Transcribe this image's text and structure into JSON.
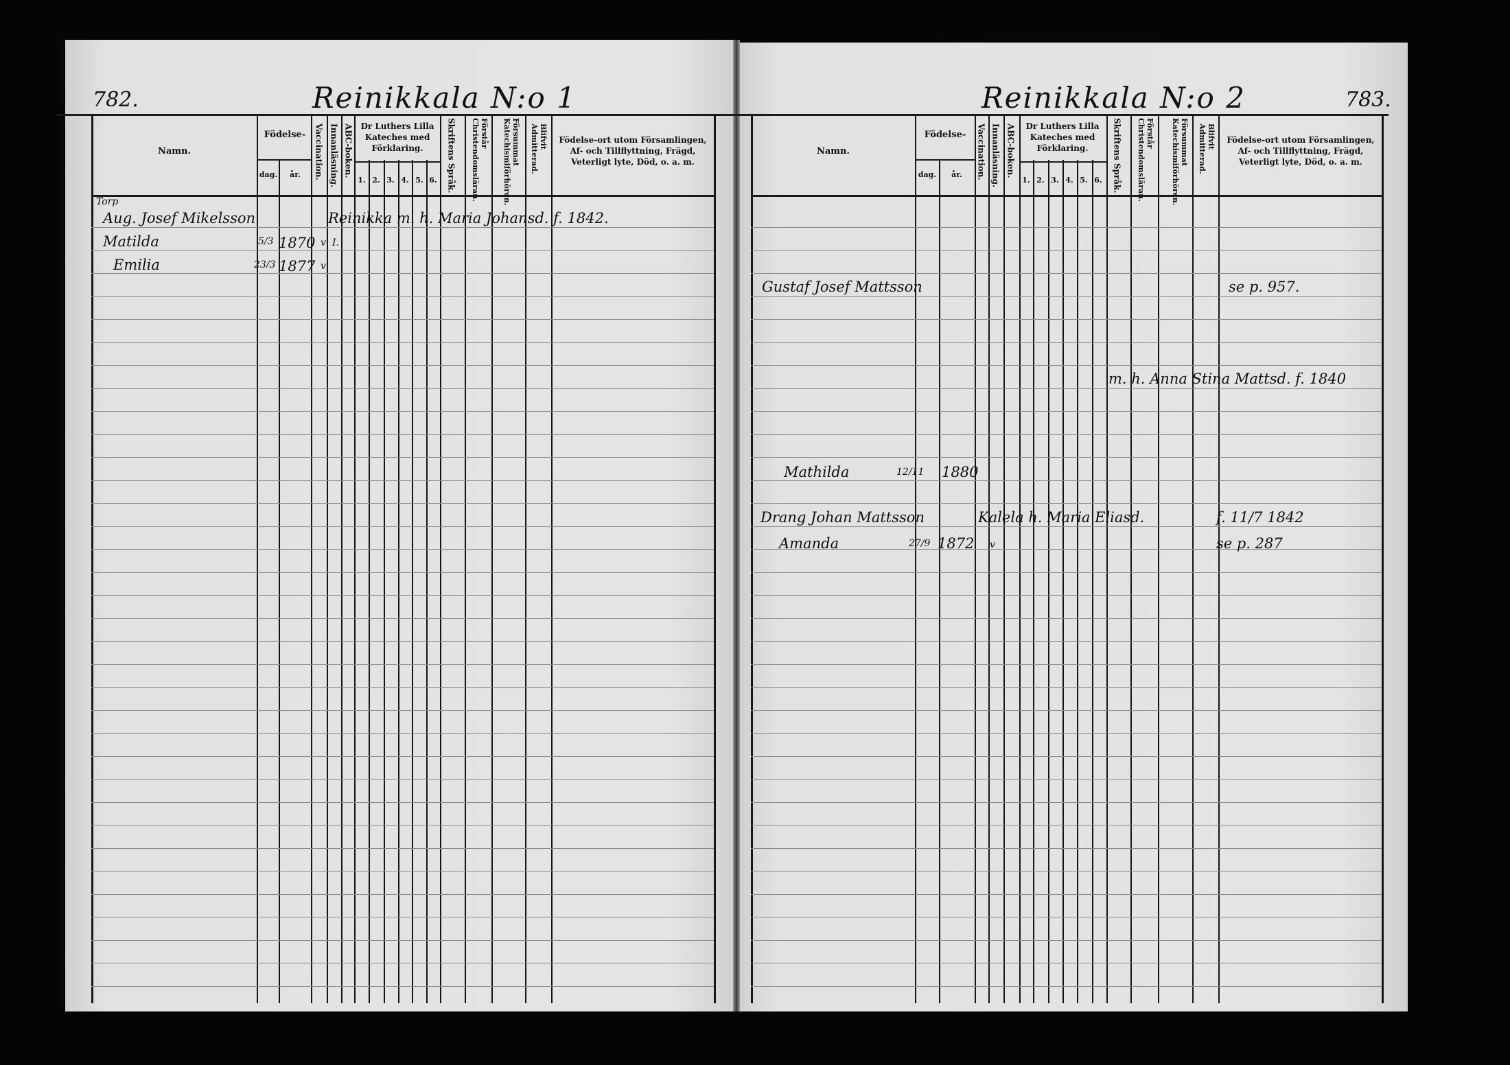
{
  "left_page": {
    "page_number": "782.",
    "title": "Reinikkala N:o 1",
    "headers": {
      "namn": "Namn.",
      "fodelse": "Födelse-",
      "dag": "dag.",
      "ar": "år.",
      "vaccination": "Vaccination.",
      "innanlasning": "Innanläsning.",
      "abc": "ABC-boken.",
      "katekes": "Dr Luthers Lilla Kateches med Förklaring.",
      "k1": "1.",
      "k2": "2.",
      "k3": "3.",
      "k4": "4.",
      "k5": "5.",
      "k6": "6.",
      "skriftens": "Skriftens Språk.",
      "forstar": "Förstår Christendomsläran.",
      "forsummat": "Försummat Katechismiförhören.",
      "blifvit": "Blifvit Admitterad.",
      "fodelseort": "Födelse-ort utom Församlingen, Af- och Tillflyttning, Frägd, Veterligt lyte, Död, o. a. m."
    },
    "entries": [
      {
        "note": "Torp",
        "name": "Aug. Josef Mikelsson",
        "text": "Reinikka m. h. Maria Johansd. f. 1842."
      },
      {
        "name": "Matilda",
        "dag": "5/3",
        "ar": "1870",
        "vacc": "v",
        "innan": "I."
      },
      {
        "name": "Emilia",
        "dag": "23/3",
        "ar": "1877",
        "vacc": "v"
      }
    ]
  },
  "right_page": {
    "page_number": "783.",
    "title": "Reinikkala N:o 2",
    "headers": {
      "namn": "Namn.",
      "fodelse": "Födelse-",
      "dag": "dag.",
      "ar": "år.",
      "vaccination": "Vaccination.",
      "innanlasning": "Innanläsning.",
      "abc": "ABC-boken.",
      "katekes": "Dr Luthers Lilla Kateches med Förklaring.",
      "k1": "1.",
      "k2": "2.",
      "k3": "3.",
      "k4": "4.",
      "k5": "5.",
      "k6": "6.",
      "skriftens": "Skriftens Språk.",
      "forstar": "Förstår Christendomsläran.",
      "forsummat": "Försummat Katechismiförhören.",
      "blifvit": "Blifvit Admitterad.",
      "fodelseort": "Födelse-ort utom Församlingen, Af- och Tillflyttning, Frägd, Veterligt lyte, Död, o. a. m."
    },
    "entries": [
      {
        "name": "Gustaf Josef Mattsson",
        "remark": "se p. 957."
      },
      {
        "text": "m. h. Anna Stina Mattsd. f. 1840"
      },
      {
        "name": "Mathilda",
        "dag": "12/11",
        "ar": "1880"
      },
      {
        "name": "Drang Johan Mattsson",
        "text": "Kalela h. Maria Eliasd.",
        "remark": "f. 11/7 1842"
      },
      {
        "name": "Amanda",
        "dag": "27/9",
        "ar": "1872",
        "vacc": "v",
        "remark": "se p. 287"
      }
    ]
  }
}
